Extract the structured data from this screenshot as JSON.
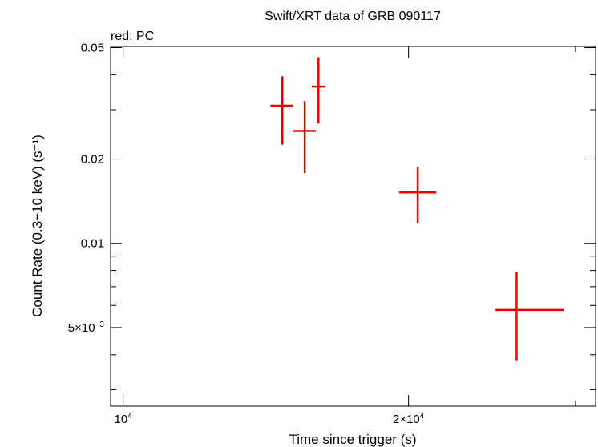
{
  "chart_data": {
    "type": "scatter",
    "title": "Swift/XRT data of GRB 090117",
    "subtitle": "red: PC",
    "xlabel": "Time since trigger (s)",
    "ylabel": "Count Rate (0.3−10 keV) (s⁻¹)",
    "x_scale": "log",
    "y_scale": "log",
    "xlim": [
      9700,
      31500
    ],
    "ylim": [
      0.00262,
      0.0505
    ],
    "x_ticks": [
      {
        "value": 10000,
        "mantissa": "10",
        "exponent": "4"
      },
      {
        "value": 20000,
        "mantissa": "2×10",
        "exponent": "4"
      }
    ],
    "y_ticks": [
      {
        "value": 0.05,
        "label": "0.05"
      },
      {
        "value": 0.02,
        "label": "0.02"
      },
      {
        "value": 0.01,
        "label": "0.01"
      },
      {
        "value": 0.005,
        "mantissa": "5×10",
        "exponent": "−3"
      }
    ],
    "series": [
      {
        "color": "#ee0000",
        "points": [
          {
            "x": 14720,
            "x_lo": 14300,
            "x_hi": 15110,
            "y": 0.031,
            "y_lo": 0.0225,
            "y_hi": 0.0395
          },
          {
            "x": 15540,
            "x_lo": 15110,
            "x_hi": 15970,
            "y": 0.0252,
            "y_lo": 0.0178,
            "y_hi": 0.0322
          },
          {
            "x": 16070,
            "x_lo": 15810,
            "x_hi": 16330,
            "y": 0.0363,
            "y_lo": 0.0268,
            "y_hi": 0.0462
          },
          {
            "x": 20450,
            "x_lo": 19550,
            "x_hi": 21400,
            "y": 0.0152,
            "y_lo": 0.0118,
            "y_hi": 0.0188
          },
          {
            "x": 26000,
            "x_lo": 24700,
            "x_hi": 29200,
            "y": 0.00578,
            "y_lo": 0.0038,
            "y_hi": 0.0079
          }
        ]
      }
    ]
  }
}
